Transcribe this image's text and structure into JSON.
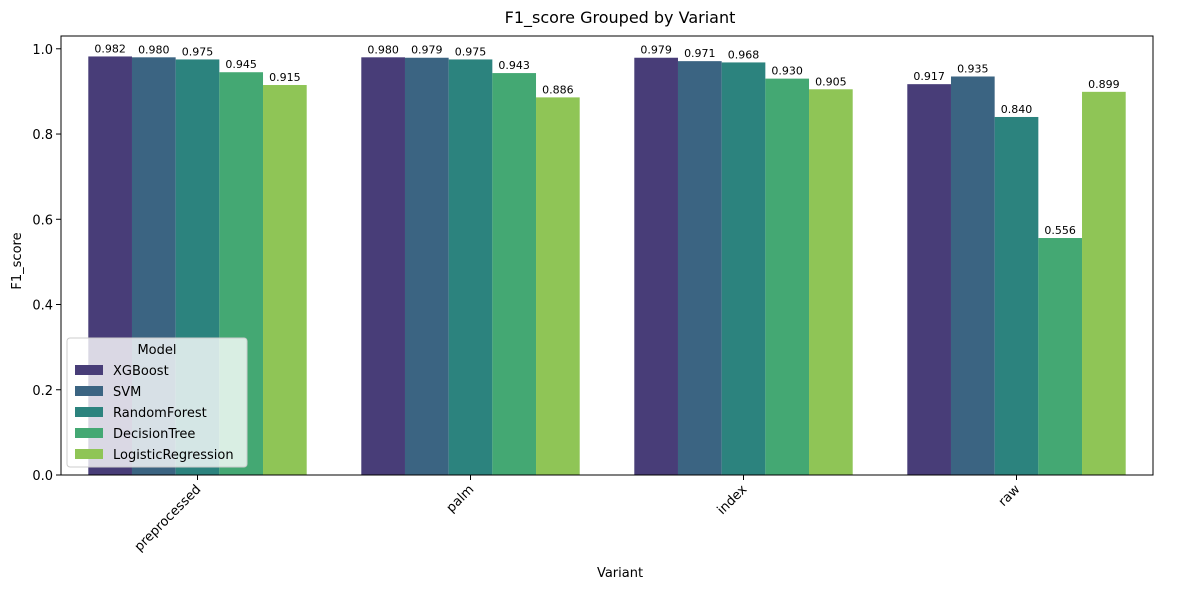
{
  "chart_data": {
    "type": "bar",
    "title": "F1_score Grouped by Variant",
    "xlabel": "Variant",
    "ylabel": "F1_score",
    "categories": [
      "preprocessed",
      "palm",
      "index",
      "raw"
    ],
    "ylim": [
      0,
      1.03
    ],
    "yticks": [
      0.0,
      0.2,
      0.4,
      0.6,
      0.8,
      1.0
    ],
    "ytick_labels": [
      "0.0",
      "0.2",
      "0.4",
      "0.6",
      "0.8",
      "1.0"
    ],
    "grid": false,
    "legend": {
      "title": "Model",
      "placement": "lower-left"
    },
    "series": [
      {
        "name": "XGBoost",
        "color": "#483d78",
        "values": [
          0.982,
          0.98,
          0.979,
          0.917
        ],
        "labels": [
          "0.982",
          "0.980",
          "0.979",
          "0.917"
        ]
      },
      {
        "name": "SVM",
        "color": "#3b6482",
        "values": [
          0.98,
          0.979,
          0.971,
          0.935
        ],
        "labels": [
          "0.980",
          "0.979",
          "0.971",
          "0.935"
        ]
      },
      {
        "name": "RandomForest",
        "color": "#2c837e",
        "values": [
          0.975,
          0.975,
          0.968,
          0.84
        ],
        "labels": [
          "0.975",
          "0.975",
          "0.968",
          "0.840"
        ]
      },
      {
        "name": "DecisionTree",
        "color": "#44a873",
        "values": [
          0.945,
          0.943,
          0.93,
          0.556
        ],
        "labels": [
          "0.945",
          "0.943",
          "0.930",
          "0.556"
        ]
      },
      {
        "name": "LogisticRegression",
        "color": "#8fc556",
        "values": [
          0.915,
          0.886,
          0.905,
          0.899
        ],
        "labels": [
          "0.915",
          "0.886",
          "0.905",
          "0.899"
        ]
      }
    ]
  }
}
